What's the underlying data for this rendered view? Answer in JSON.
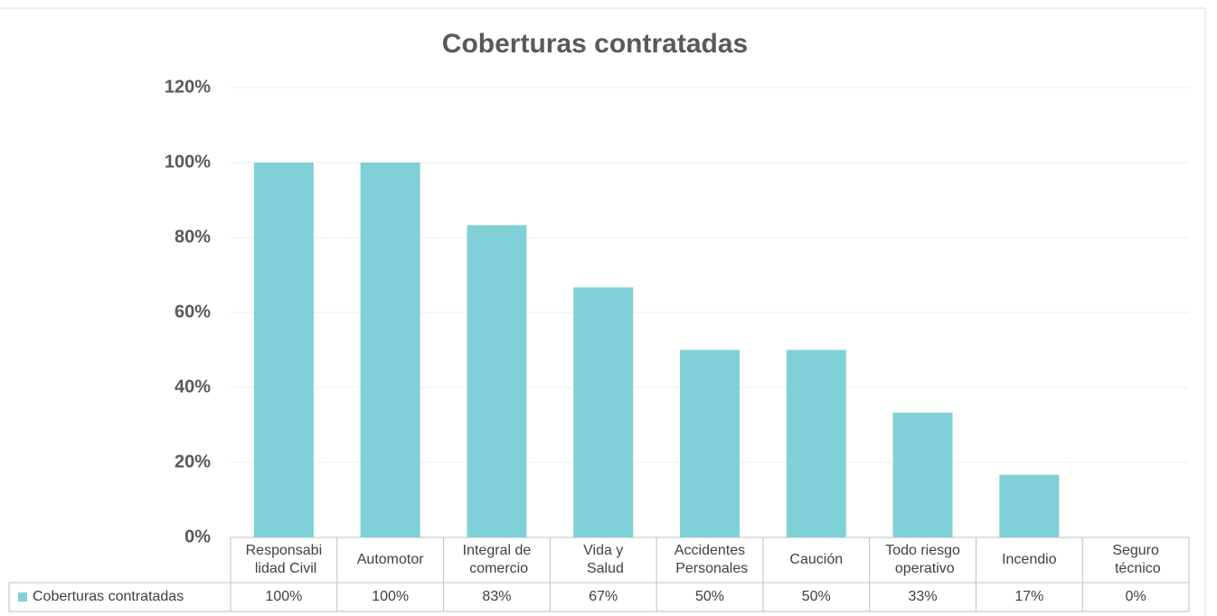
{
  "chart_data": {
    "type": "bar",
    "title": "Coberturas contratadas",
    "categories": [
      "Responsabi\nlidad Civil",
      "Automotor",
      "Integral de\ncomercio",
      "Vida y\nSalud",
      "Accidentes\nPersonales",
      "Caución",
      "Todo riesgo\noperativo",
      "Incendio",
      "Seguro\ntécnico"
    ],
    "series": [
      {
        "name": "Coberturas contratadas",
        "color": "#7fd1d7",
        "values": [
          100,
          100,
          83.3,
          66.7,
          50,
          50,
          33.3,
          16.7,
          0
        ],
        "value_labels": [
          "100%",
          "100%",
          "83%",
          "67%",
          "50%",
          "50%",
          "33%",
          "17%",
          "0%"
        ]
      }
    ],
    "ylim": [
      0,
      120
    ],
    "yticks": [
      {
        "value": 0,
        "label": "0%"
      },
      {
        "value": 20,
        "label": "20%"
      },
      {
        "value": 40,
        "label": "40%"
      },
      {
        "value": 60,
        "label": "60%"
      },
      {
        "value": 80,
        "label": "80%"
      },
      {
        "value": 100,
        "label": "100%"
      },
      {
        "value": 120,
        "label": "120%"
      }
    ],
    "grid": true
  }
}
